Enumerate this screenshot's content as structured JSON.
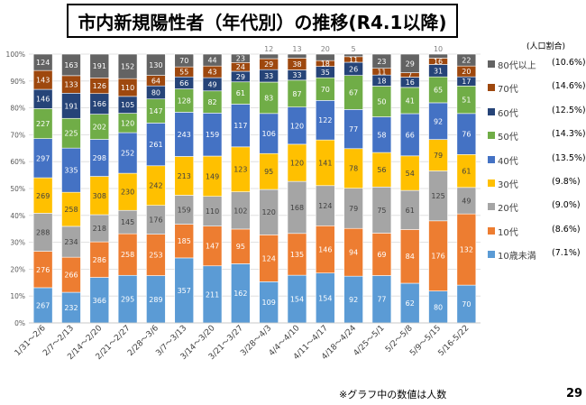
{
  "title": "市内新規陽性者（年代別）の推移(R4.1以降)",
  "note": "※グラフ中の数値は人数",
  "page_number": "29",
  "ratio_header": "(人口割合)",
  "chart_data": {
    "type": "bar",
    "stacked": "percent",
    "categories": [
      "1/31～2/6",
      "2/7～2/13",
      "2/14～2/20",
      "2/21～2/27",
      "2/28～3/6",
      "3/7～3/13",
      "3/14～3/20",
      "3/21～3/27",
      "3/28～4/3",
      "4/4～4/10",
      "4/11～4/17",
      "4/18～4/24",
      "4/25～5/1",
      "5/2～5/8",
      "5/9～5/15",
      "5/16-5/22"
    ],
    "y_ticks": [
      "0%",
      "10%",
      "20%",
      "30%",
      "40%",
      "50%",
      "60%",
      "70%",
      "80%",
      "90%",
      "100%"
    ],
    "ylim": [
      0,
      100
    ],
    "series": [
      {
        "name": "10歳未満",
        "ratio": "(7.1%)",
        "color": "#5B9BD5",
        "values": [
          267,
          232,
          366,
          295,
          289,
          357,
          211,
          162,
          109,
          154,
          154,
          92,
          77,
          62,
          80,
          70
        ]
      },
      {
        "name": "10代",
        "ratio": "(8.6%)",
        "color": "#ED7D31",
        "values": [
          276,
          266,
          286,
          258,
          253,
          185,
          147,
          95,
          124,
          135,
          146,
          94,
          69,
          84,
          176,
          132
        ]
      },
      {
        "name": "20代",
        "ratio": "(9.0%)",
        "color": "#A5A5A5",
        "values": [
          288,
          234,
          218,
          145,
          176,
          159,
          110,
          102,
          120,
          168,
          124,
          79,
          75,
          61,
          125,
          49
        ]
      },
      {
        "name": "30代",
        "ratio": "(9.8%)",
        "color": "#FFC000",
        "values": [
          269,
          258,
          308,
          230,
          242,
          213,
          149,
          123,
          95,
          120,
          141,
          78,
          56,
          54,
          79,
          61
        ]
      },
      {
        "name": "40代",
        "ratio": "(13.5%)",
        "color": "#4472C4",
        "values": [
          297,
          335,
          298,
          252,
          261,
          243,
          159,
          117,
          106,
          120,
          122,
          77,
          58,
          66,
          92,
          76
        ]
      },
      {
        "name": "50代",
        "ratio": "(14.3%)",
        "color": "#70AD47",
        "values": [
          227,
          225,
          202,
          120,
          147,
          128,
          82,
          61,
          83,
          87,
          70,
          67,
          50,
          41,
          65,
          51
        ]
      },
      {
        "name": "60代",
        "ratio": "(12.5%)",
        "color": "#264478",
        "values": [
          146,
          191,
          166,
          105,
          80,
          66,
          49,
          29,
          33,
          33,
          35,
          26,
          18,
          16,
          31,
          17
        ]
      },
      {
        "name": "70代",
        "ratio": "(14.6%)",
        "color": "#9E480E",
        "values": [
          143,
          133,
          126,
          110,
          64,
          55,
          43,
          24,
          29,
          38,
          18,
          11,
          11,
          7,
          16,
          20
        ]
      },
      {
        "name": "80代以上",
        "ratio": "(10.6%)",
        "color": "#636363",
        "values": [
          124,
          163,
          191,
          152,
          130,
          70,
          44,
          23,
          12,
          13,
          20,
          5,
          23,
          29,
          10,
          22
        ]
      }
    ]
  }
}
